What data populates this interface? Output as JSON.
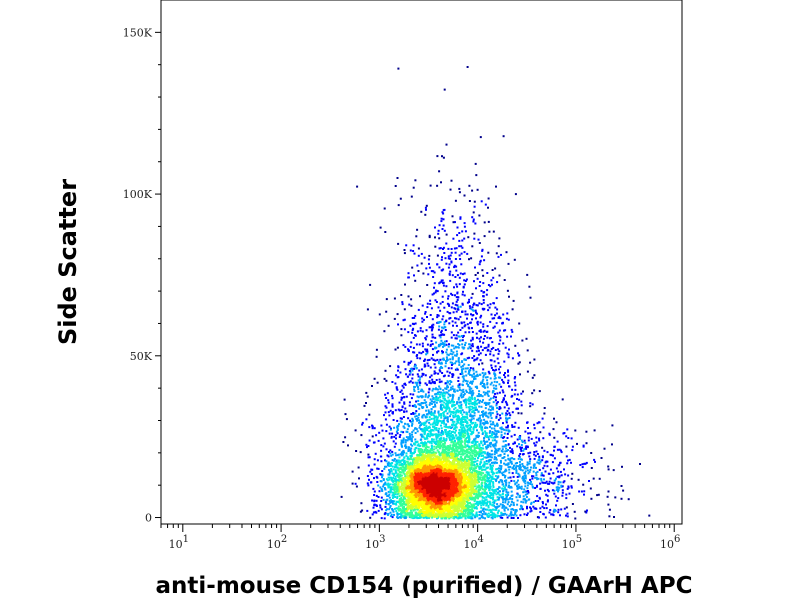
{
  "chart_data": {
    "type": "scatter",
    "title": "",
    "xlabel": "anti-mouse CD154 (purified) / GAArH APC",
    "ylabel": "Side Scatter",
    "x_scale": "log",
    "y_scale": "linear",
    "xlim": [
      6,
      1200000
    ],
    "ylim": [
      -2000,
      160000
    ],
    "x_ticks": [
      {
        "value": 10,
        "base": "10",
        "exp": "1"
      },
      {
        "value": 100,
        "base": "10",
        "exp": "2"
      },
      {
        "value": 1000,
        "base": "10",
        "exp": "3"
      },
      {
        "value": 10000,
        "base": "10",
        "exp": "4"
      },
      {
        "value": 100000,
        "base": "10",
        "exp": "5"
      },
      {
        "value": 1000000,
        "base": "10",
        "exp": "6"
      }
    ],
    "y_ticks": [
      {
        "value": 0,
        "label": "0"
      },
      {
        "value": 50000,
        "label": "50K"
      },
      {
        "value": 100000,
        "label": "100K"
      },
      {
        "value": 150000,
        "label": "150K"
      }
    ],
    "grid": false,
    "legend": "none",
    "density_colormap": [
      "#00008b",
      "#0000ff",
      "#00a0ff",
      "#00e5e5",
      "#33ff99",
      "#ccff33",
      "#ffff00",
      "#ff9900",
      "#ff2200",
      "#cc0000"
    ],
    "populations": [
      {
        "center_x": 3500,
        "center_y": 10000,
        "log_spread_x": 0.22,
        "spread_y": 5000,
        "weight": 0.45
      },
      {
        "center_x": 5000,
        "center_y": 20000,
        "log_spread_x": 0.35,
        "spread_y": 14000,
        "weight": 0.3
      },
      {
        "center_x": 6000,
        "center_y": 50000,
        "log_spread_x": 0.3,
        "spread_y": 25000,
        "weight": 0.15
      },
      {
        "center_x": 20000,
        "center_y": 12000,
        "log_spread_x": 0.45,
        "spread_y": 8000,
        "weight": 0.1
      }
    ]
  }
}
